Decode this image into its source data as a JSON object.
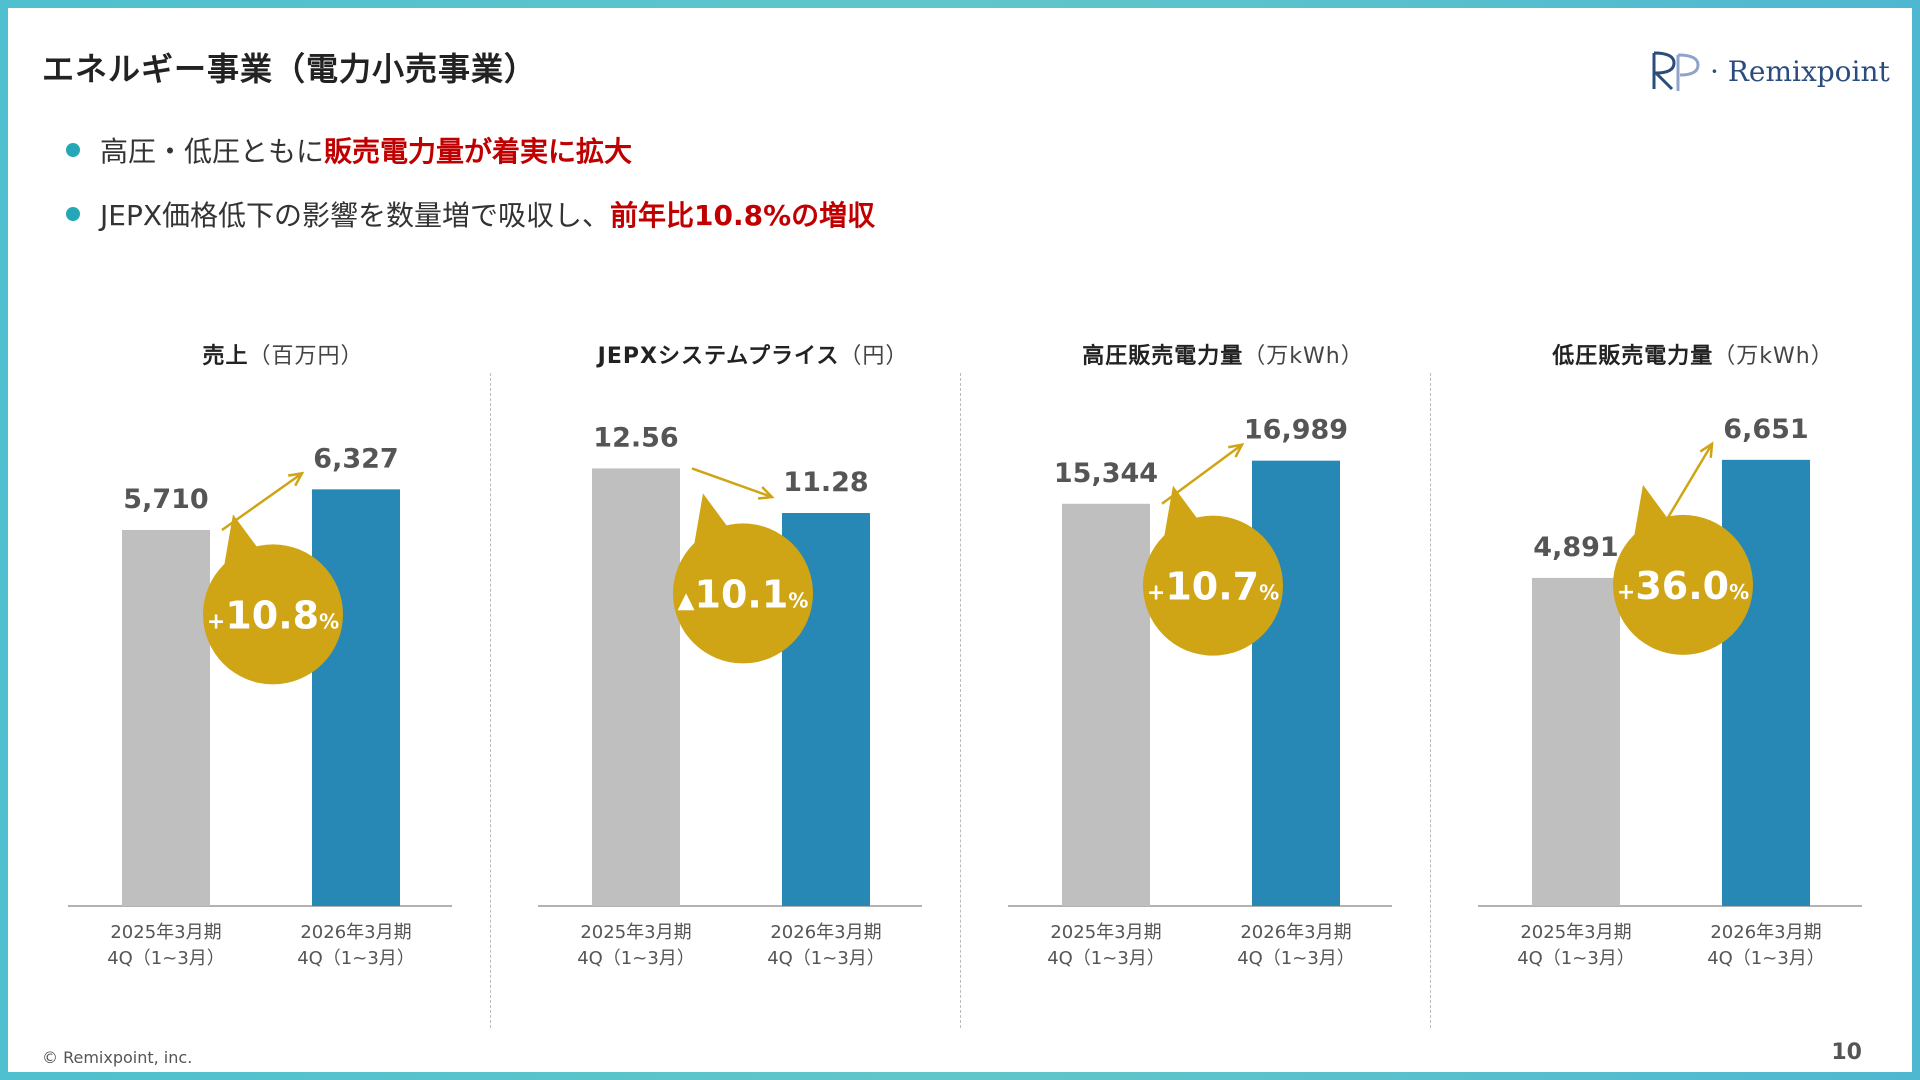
{
  "title": "エネルギー事業（電力小売事業）",
  "logo_text": "· Remixpoint",
  "bullets": [
    {
      "text": "高圧・低圧ともに",
      "highlight": "販売電力量が着実に拡大"
    },
    {
      "text": "JEPX価格低下の影響を数量増で吸収し、",
      "highlight": "前年比10.8%の増収"
    }
  ],
  "colors": {
    "prev": "#bfbfbf",
    "curr": "#2788b6",
    "bubble": "#cfa415",
    "arrow": "#cfa415",
    "highlight": "#c00000"
  },
  "chart_data": [
    {
      "type": "bar",
      "title": "売上",
      "unit": "（百万円）",
      "categories": [
        "2025年3月期\n4Q（1~3月）",
        "2026年3月期\n4Q（1~3月）"
      ],
      "values": [
        5710,
        6327
      ],
      "value_labels": [
        "5,710",
        "6,327"
      ],
      "ylim": [
        0,
        8200
      ],
      "change": {
        "sign": "+",
        "number": "10.8",
        "unit": "%"
      }
    },
    {
      "type": "bar",
      "title": "JEPXシステムプライス",
      "unit": "（円）",
      "categories": [
        "2025年3月期\n4Q（1~3月）",
        "2026年3月期\n4Q（1~3月）"
      ],
      "values": [
        12.56,
        11.28
      ],
      "value_labels": [
        "12.56",
        "11.28"
      ],
      "ylim": [
        0,
        15.5
      ],
      "change": {
        "sign": "▲",
        "number": "10.1",
        "unit": "%"
      }
    },
    {
      "type": "bar",
      "title": "高圧販売電力量",
      "unit": "（万kWh）",
      "categories": [
        "2025年3月期\n4Q（1~3月）",
        "2026年3月期\n4Q（1~3月）"
      ],
      "values": [
        15344,
        16989
      ],
      "value_labels": [
        "15,344",
        "16,989"
      ],
      "ylim": [
        0,
        20600
      ],
      "change": {
        "sign": "+",
        "number": "10.7",
        "unit": "%"
      }
    },
    {
      "type": "bar",
      "title": "低圧販売電力量",
      "unit": "（万kWh）",
      "categories": [
        "2025年3月期\n4Q（1~3月）",
        "2026年3月期\n4Q（1~3月）"
      ],
      "values": [
        4891,
        6651
      ],
      "value_labels": [
        "4,891",
        "6,651"
      ],
      "ylim": [
        0,
        8050
      ],
      "change": {
        "sign": "+",
        "number": "36.0",
        "unit": "%"
      }
    }
  ],
  "footer": "© Remixpoint, inc.",
  "page_number": "10"
}
